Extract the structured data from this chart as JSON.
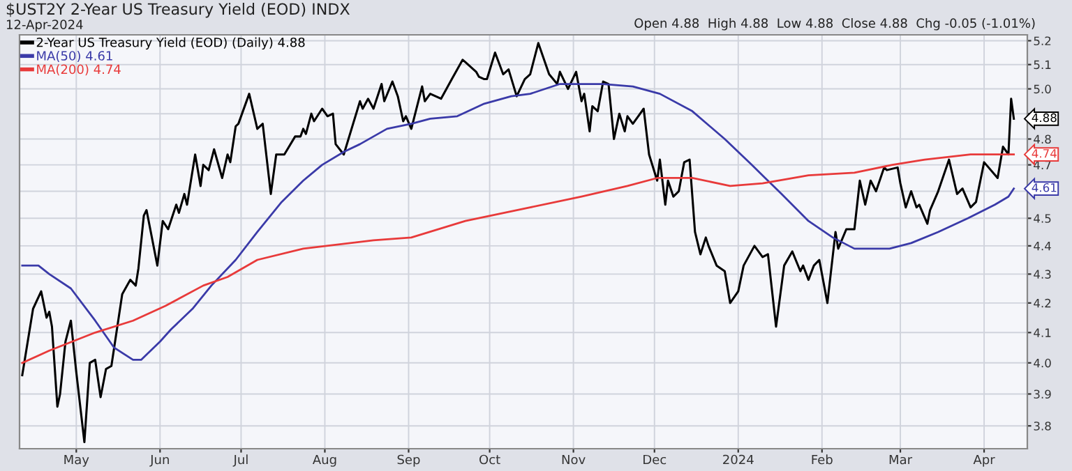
{
  "chart_data": {
    "type": "line",
    "title": "$UST2Y 2-Year US Treasury Yield (EOD) INDX",
    "subtitle": "12-Apr-2024",
    "annotations": [
      "Open 4.88  High 4.88  Low 4.88  Close 4.88  Chg -0.05 (-1.01%)",
      {
        "text": "4.88",
        "x": "2024-04-12",
        "y": 4.88
      },
      {
        "text": "4.74",
        "x": "2024-04-12",
        "y": 4.74
      },
      {
        "text": "4.61",
        "x": "2024-04-12",
        "y": 4.61
      }
    ],
    "series": [
      {
        "name": "2-Year US Treasury Yield (EOD) (Daily) 4.88",
        "color": "#000000",
        "x": [
          "2023-04-11",
          "2023-04-15",
          "2023-04-18",
          "2023-04-20",
          "2023-04-21",
          "2023-04-22",
          "2023-04-24",
          "2023-04-25",
          "2023-04-27",
          "2023-04-29",
          "2023-05-01",
          "2023-05-04",
          "2023-05-06",
          "2023-05-08",
          "2023-05-10",
          "2023-05-12",
          "2023-05-14",
          "2023-05-18",
          "2023-05-21",
          "2023-05-23",
          "2023-05-24",
          "2023-05-26",
          "2023-05-27",
          "2023-05-31",
          "2023-06-02",
          "2023-06-04",
          "2023-06-07",
          "2023-06-08",
          "2023-06-10",
          "2023-06-11",
          "2023-06-14",
          "2023-06-16",
          "2023-06-17",
          "2023-06-19",
          "2023-06-21",
          "2023-06-24",
          "2023-06-26",
          "2023-06-27",
          "2023-06-29",
          "2023-06-30",
          "2023-07-04",
          "2023-07-07",
          "2023-07-09",
          "2023-07-12",
          "2023-07-14",
          "2023-07-17",
          "2023-07-21",
          "2023-07-23",
          "2023-07-24",
          "2023-07-25",
          "2023-07-27",
          "2023-07-28",
          "2023-07-31",
          "2023-08-02",
          "2023-08-04",
          "2023-08-05",
          "2023-08-08",
          "2023-08-14",
          "2023-08-15",
          "2023-08-17",
          "2023-08-19",
          "2023-08-22",
          "2023-08-23",
          "2023-08-26",
          "2023-08-28",
          "2023-08-30",
          "2023-08-31",
          "2023-09-02",
          "2023-09-06",
          "2023-09-07",
          "2023-09-09",
          "2023-09-11",
          "2023-09-13",
          "2023-09-17",
          "2023-09-21",
          "2023-09-22",
          "2023-09-26",
          "2023-09-27",
          "2023-09-29",
          "2023-09-30",
          "2023-10-03",
          "2023-10-06",
          "2023-10-08",
          "2023-10-11",
          "2023-10-14",
          "2023-10-16",
          "2023-10-19",
          "2023-10-23",
          "2023-10-26",
          "2023-10-27",
          "2023-10-30",
          "2023-11-02",
          "2023-11-04",
          "2023-11-05",
          "2023-11-07",
          "2023-11-08",
          "2023-11-10",
          "2023-11-12",
          "2023-11-14",
          "2023-11-16",
          "2023-11-18",
          "2023-11-20",
          "2023-11-21",
          "2023-11-23",
          "2023-11-25",
          "2023-11-27",
          "2023-11-29",
          "2023-12-02",
          "2023-12-03",
          "2023-12-05",
          "2023-12-06",
          "2023-12-08",
          "2023-12-10",
          "2023-12-12",
          "2023-12-14",
          "2023-12-16",
          "2023-12-18",
          "2023-12-20",
          "2023-12-21",
          "2023-12-24",
          "2023-12-27",
          "2023-12-29",
          "2024-01-01",
          "2024-01-03",
          "2024-01-07",
          "2024-01-10",
          "2024-01-12",
          "2024-01-15",
          "2024-01-18",
          "2024-01-21",
          "2024-01-24",
          "2024-01-25",
          "2024-01-27",
          "2024-01-29",
          "2024-01-31",
          "2024-02-03",
          "2024-02-06",
          "2024-02-07",
          "2024-02-10",
          "2024-02-13",
          "2024-02-15",
          "2024-02-17",
          "2024-02-19",
          "2024-02-21",
          "2024-02-24",
          "2024-02-25",
          "2024-02-29",
          "2024-03-01",
          "2024-03-03",
          "2024-03-05",
          "2024-03-07",
          "2024-03-08",
          "2024-03-11",
          "2024-03-12",
          "2024-03-15",
          "2024-03-19",
          "2024-03-22",
          "2024-03-24",
          "2024-03-27",
          "2024-03-29",
          "2024-04-01",
          "2024-04-06",
          "2024-04-08",
          "2024-04-10",
          "2024-04-11",
          "2024-04-12"
        ],
        "values": [
          3.96,
          4.18,
          4.24,
          4.15,
          4.17,
          4.12,
          3.86,
          3.9,
          4.07,
          4.14,
          3.97,
          3.75,
          4.0,
          4.01,
          3.89,
          3.98,
          3.99,
          4.23,
          4.28,
          4.26,
          4.32,
          4.51,
          4.53,
          4.33,
          4.49,
          4.46,
          4.55,
          4.52,
          4.59,
          4.55,
          4.74,
          4.62,
          4.7,
          4.68,
          4.76,
          4.65,
          4.74,
          4.71,
          4.85,
          4.86,
          4.98,
          4.84,
          4.86,
          4.59,
          4.74,
          4.74,
          4.81,
          4.81,
          4.84,
          4.82,
          4.9,
          4.87,
          4.92,
          4.89,
          4.9,
          4.78,
          4.74,
          4.95,
          4.92,
          4.96,
          4.92,
          5.02,
          4.95,
          5.03,
          4.97,
          4.87,
          4.89,
          4.84,
          5.01,
          4.95,
          4.98,
          4.97,
          4.96,
          5.04,
          5.12,
          5.11,
          5.07,
          5.05,
          5.04,
          5.04,
          5.15,
          5.06,
          5.08,
          4.97,
          5.04,
          5.06,
          5.19,
          5.06,
          5.02,
          5.07,
          5.0,
          5.07,
          4.95,
          4.98,
          4.83,
          4.93,
          4.91,
          5.03,
          5.02,
          4.8,
          4.9,
          4.83,
          4.89,
          4.86,
          4.89,
          4.92,
          4.74,
          4.64,
          4.72,
          4.55,
          4.64,
          4.58,
          4.6,
          4.71,
          4.72,
          4.45,
          4.37,
          4.43,
          4.4,
          4.33,
          4.31,
          4.2,
          4.24,
          4.33,
          4.4,
          4.36,
          4.37,
          4.12,
          4.33,
          4.38,
          4.31,
          4.33,
          4.28,
          4.33,
          4.35,
          4.2,
          4.45,
          4.39,
          4.46,
          4.46,
          4.64,
          4.55,
          4.64,
          4.6,
          4.69,
          4.68,
          4.69,
          4.63,
          4.54,
          4.6,
          4.54,
          4.55,
          4.48,
          4.53,
          4.6,
          4.72,
          4.59,
          4.61,
          4.54,
          4.56,
          4.71,
          4.65,
          4.77,
          4.74,
          4.96,
          4.88
        ]
      },
      {
        "name": "MA(50) 4.61",
        "color": "#3a3aa8",
        "x": [
          "2023-04-11",
          "2023-04-17",
          "2023-04-21",
          "2023-04-29",
          "2023-05-08",
          "2023-05-15",
          "2023-05-22",
          "2023-05-25",
          "2023-06-01",
          "2023-06-05",
          "2023-06-13",
          "2023-06-20",
          "2023-06-29",
          "2023-07-07",
          "2023-07-16",
          "2023-07-24",
          "2023-07-31",
          "2023-08-08",
          "2023-08-14",
          "2023-08-24",
          "2023-09-02",
          "2023-09-09",
          "2023-09-19",
          "2023-09-29",
          "2023-10-09",
          "2023-10-16",
          "2023-10-27",
          "2023-11-12",
          "2023-11-23",
          "2023-12-03",
          "2023-12-15",
          "2023-12-27",
          "2024-01-06",
          "2024-01-17",
          "2024-01-27",
          "2024-02-05",
          "2024-02-13",
          "2024-02-26",
          "2024-03-05",
          "2024-03-15",
          "2024-03-26",
          "2024-04-05",
          "2024-04-10",
          "2024-04-12"
        ],
        "values": [
          4.33,
          4.33,
          4.3,
          4.25,
          4.14,
          4.05,
          4.01,
          4.01,
          4.07,
          4.11,
          4.18,
          4.26,
          4.35,
          4.45,
          4.56,
          4.64,
          4.7,
          4.75,
          4.78,
          4.84,
          4.86,
          4.88,
          4.89,
          4.94,
          4.97,
          4.98,
          5.02,
          5.02,
          5.01,
          4.98,
          4.91,
          4.8,
          4.7,
          4.59,
          4.49,
          4.43,
          4.39,
          4.39,
          4.41,
          4.45,
          4.5,
          4.55,
          4.58,
          4.61
        ]
      },
      {
        "name": "MA(200) 4.74",
        "color": "#e83a3a",
        "x": [
          "2023-04-11",
          "2023-04-21",
          "2023-05-08",
          "2023-05-22",
          "2023-06-03",
          "2023-06-17",
          "2023-06-26",
          "2023-07-07",
          "2023-07-24",
          "2023-08-19",
          "2023-09-02",
          "2023-09-22",
          "2023-10-16",
          "2023-11-04",
          "2023-11-21",
          "2023-12-02",
          "2023-12-15",
          "2023-12-29",
          "2024-01-10",
          "2024-01-27",
          "2024-02-13",
          "2024-02-27",
          "2024-03-10",
          "2024-03-27",
          "2024-04-12"
        ],
        "values": [
          4.0,
          4.04,
          4.1,
          4.14,
          4.19,
          4.26,
          4.29,
          4.35,
          4.39,
          4.42,
          4.43,
          4.49,
          4.54,
          4.58,
          4.62,
          4.65,
          4.65,
          4.62,
          4.63,
          4.66,
          4.67,
          4.7,
          4.72,
          4.74,
          4.74
        ]
      }
    ],
    "log": "y",
    "xlim": [
      "2023-04-10",
      "2024-04-17"
    ],
    "ylim": [
      3.73,
      5.225
    ],
    "xticks": [
      {
        "value": "2023-05-01",
        "label": "May"
      },
      {
        "value": "2023-06-01",
        "label": "Jun"
      },
      {
        "value": "2023-07-01",
        "label": "Jul"
      },
      {
        "value": "2023-08-01",
        "label": "Aug"
      },
      {
        "value": "2023-09-01",
        "label": "Sep"
      },
      {
        "value": "2023-10-01",
        "label": "Oct"
      },
      {
        "value": "2023-11-01",
        "label": "Nov"
      },
      {
        "value": "2023-12-01",
        "label": "Dec"
      },
      {
        "value": "2024-01-01",
        "label": "2024"
      },
      {
        "value": "2024-02-01",
        "label": "Feb"
      },
      {
        "value": "2024-03-01",
        "label": "Mar"
      },
      {
        "value": "2024-04-01",
        "label": "Apr"
      }
    ],
    "yticks": [
      {
        "value": 3.8,
        "label": "3.8"
      },
      {
        "value": 3.9,
        "label": "3.9"
      },
      {
        "value": 4.0,
        "label": "4.0"
      },
      {
        "value": 4.1,
        "label": "4.1"
      },
      {
        "value": 4.2,
        "label": "4.2"
      },
      {
        "value": 4.3,
        "label": "4.3"
      },
      {
        "value": 4.4,
        "label": "4.4"
      },
      {
        "value": 4.5,
        "label": "4.5"
      },
      {
        "value": 4.6,
        "label": null
      },
      {
        "value": 4.7,
        "label": "4.7"
      },
      {
        "value": 4.8,
        "label": "4.8"
      },
      {
        "value": 4.9,
        "label": null
      },
      {
        "value": 5.0,
        "label": "5.0"
      },
      {
        "value": 5.1,
        "label": "5.1"
      },
      {
        "value": 5.2,
        "label": "5.2"
      }
    ],
    "grid": true,
    "legend": "top left",
    "line_style": "solid"
  }
}
